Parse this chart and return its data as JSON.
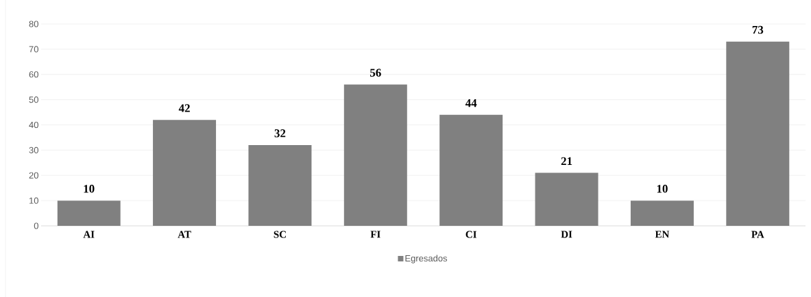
{
  "chart_data": {
    "type": "bar",
    "categories": [
      "AI",
      "AT",
      "SC",
      "FI",
      "CI",
      "DI",
      "EN",
      "PA"
    ],
    "series": [
      {
        "name": "Egresados",
        "color": "#808080",
        "values": [
          10,
          42,
          32,
          56,
          44,
          21,
          10,
          73
        ]
      }
    ],
    "ylim": [
      0,
      80
    ],
    "yticks": [
      0,
      10,
      20,
      30,
      40,
      50,
      60,
      70,
      80
    ],
    "grid": "y",
    "legend": "bottom",
    "data_labels": true
  }
}
